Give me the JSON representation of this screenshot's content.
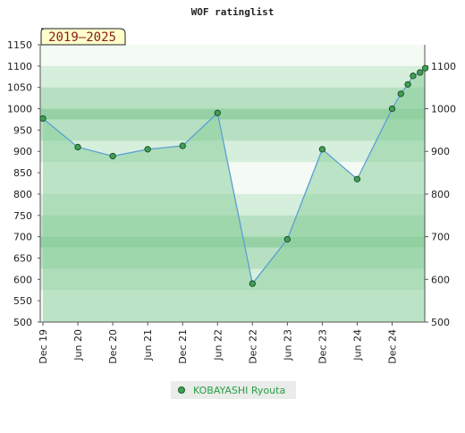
{
  "chart_data": {
    "type": "line",
    "title": "WOF ratinglist",
    "badge": "2019–2025",
    "xlabel": "",
    "ylabel": "",
    "ylim": [
      500,
      1150
    ],
    "y_ticks": [
      500,
      550,
      600,
      650,
      700,
      750,
      800,
      850,
      900,
      950,
      1000,
      1050,
      1100,
      1150
    ],
    "y_ticks_right": [
      500,
      600,
      700,
      800,
      900,
      1000,
      1100
    ],
    "x_ticks": [
      "Dec 19",
      "Jun 20",
      "Dec 20",
      "Jun 21",
      "Dec 21",
      "Jun 22",
      "Dec 22",
      "Jun 23",
      "Dec 23",
      "Jun 24",
      "Dec 24"
    ],
    "legend_position": "bottom",
    "colors": {
      "line": "#5a9fd4",
      "marker": "#3f9f55",
      "area": "#8ccf9c",
      "band_dark": "#9fd5ac",
      "band_light": "#f4fbf5"
    },
    "series": [
      {
        "name": "KOBAYASHI Ryouta",
        "points": [
          {
            "x": 0,
            "y": 977
          },
          {
            "x": 1,
            "y": 910
          },
          {
            "x": 2,
            "y": 889
          },
          {
            "x": 3,
            "y": 905
          },
          {
            "x": 4,
            "y": 913
          },
          {
            "x": 5,
            "y": 990
          },
          {
            "x": 6,
            "y": 590
          },
          {
            "x": 7,
            "y": 694
          },
          {
            "x": 8,
            "y": 905
          },
          {
            "x": 9,
            "y": 835
          },
          {
            "x": 10,
            "y": 1000
          },
          {
            "x": 10.25,
            "y": 1035
          },
          {
            "x": 10.45,
            "y": 1057
          },
          {
            "x": 10.6,
            "y": 1077
          },
          {
            "x": 10.8,
            "y": 1085
          },
          {
            "x": 10.95,
            "y": 1095
          }
        ]
      }
    ]
  }
}
